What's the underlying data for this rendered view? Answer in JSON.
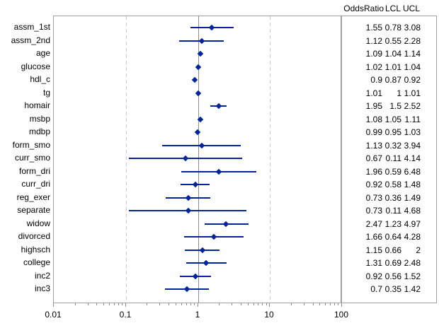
{
  "chart_data": {
    "type": "forest",
    "title": "",
    "xlabel": "",
    "ylabel": "",
    "col_headers": [
      "OddsRatio",
      "LCL",
      "UCL"
    ],
    "categories": [
      "assm_1st",
      "assm_2nd",
      "age",
      "glucose",
      "hdl_c",
      "tg",
      "homair",
      "msbp",
      "mdbp",
      "form_smo",
      "curr_smo",
      "form_dri",
      "curr_dri",
      "reg_exer",
      "separate",
      "widow",
      "divorced",
      "highsch",
      "college",
      "inc2",
      "inc3"
    ],
    "series": [
      {
        "name": "OddsRatio",
        "values": [
          "1.55",
          "1.12",
          "1.09",
          "1.02",
          "0.9",
          "1.01",
          "1.95",
          "1.08",
          "0.99",
          "1.13",
          "0.67",
          "1.96",
          "0.92",
          "0.73",
          "0.73",
          "2.47",
          "1.66",
          "1.15",
          "1.31",
          "0.92",
          "0.7"
        ]
      },
      {
        "name": "LCL",
        "values": [
          "0.78",
          "0.55",
          "1.04",
          "1.01",
          "0.87",
          "1",
          "1.5",
          "1.05",
          "0.95",
          "0.32",
          "0.11",
          "0.59",
          "0.58",
          "0.36",
          "0.11",
          "1.23",
          "0.64",
          "0.66",
          "0.69",
          "0.56",
          "0.35"
        ]
      },
      {
        "name": "UCL",
        "values": [
          "3.08",
          "2.28",
          "1.14",
          "1.04",
          "0.92",
          "1.01",
          "2.52",
          "1.11",
          "1.03",
          "3.94",
          "4.14",
          "6.48",
          "1.48",
          "1.49",
          "4.68",
          "4.97",
          "4.28",
          "2",
          "2.48",
          "1.52",
          "1.42"
        ]
      }
    ],
    "xaxis": {
      "scale": "log10",
      "min": 0.01,
      "max": 100,
      "major_ticks": [
        "0.01",
        "0.1",
        "1",
        "10",
        "100"
      ],
      "minor_tick_multiples": [
        2,
        3,
        4,
        5,
        6,
        7,
        8,
        9
      ]
    },
    "reference_line_x": 1,
    "dashed_gridlines_x": [
      0.1,
      10
    ],
    "legend": "none",
    "grid": "vertical-dashed",
    "colors": {
      "marker": "#00249c",
      "ci_line": "#00249c",
      "gridline": "#c9c9c9",
      "reference_line": "#8c8c8c",
      "frame_border": "#a0a0a0",
      "text": "#000000",
      "background": "#ffffff"
    }
  }
}
